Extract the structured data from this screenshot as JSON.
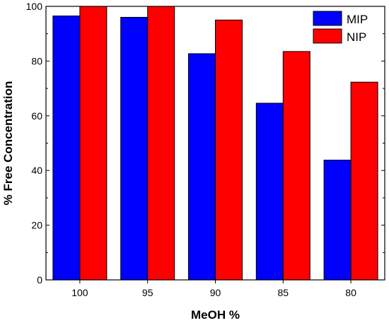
{
  "chart_data": {
    "type": "bar",
    "categories": [
      "100",
      "95",
      "90",
      "85",
      "80"
    ],
    "series": [
      {
        "name": "MIP",
        "color": "#0000ff",
        "values": [
          96.5,
          96.0,
          82.7,
          64.6,
          43.8
        ]
      },
      {
        "name": "NIP",
        "color": "#ff0000",
        "values": [
          100,
          100,
          95.0,
          83.5,
          72.3
        ]
      }
    ],
    "xlabel": "MeOH %",
    "ylabel": "% Free Concentration",
    "ylim": [
      0,
      100
    ],
    "yticks": [
      "0",
      "20",
      "40",
      "60",
      "80",
      "100"
    ],
    "grid": false,
    "legend": "top-right"
  }
}
